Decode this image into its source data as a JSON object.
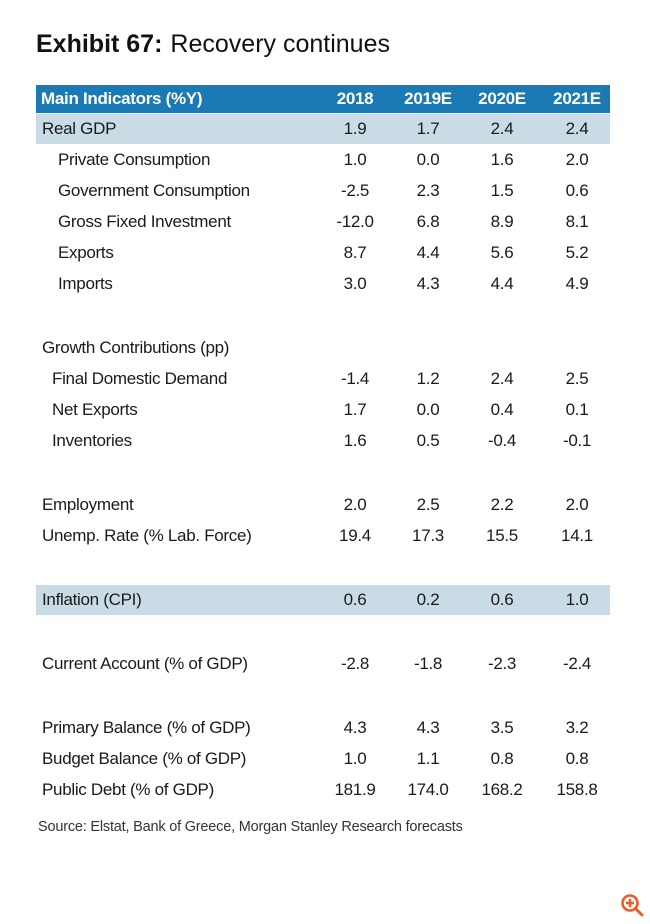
{
  "title": {
    "exhibit": "Exhibit 67:",
    "text": "Recovery continues"
  },
  "table": {
    "header": {
      "label": "Main Indicators (%Y)",
      "years": [
        "2018",
        "2019E",
        "2020E",
        "2021E"
      ]
    },
    "rows": [
      {
        "label": "Real GDP",
        "values": [
          "1.9",
          "1.7",
          "2.4",
          "2.4"
        ],
        "indent": 0,
        "band": true
      },
      {
        "label": "Private Consumption",
        "values": [
          "1.0",
          "0.0",
          "1.6",
          "2.0"
        ],
        "indent": 2
      },
      {
        "label": "Government Consumption",
        "values": [
          "-2.5",
          "2.3",
          "1.5",
          "0.6"
        ],
        "indent": 2
      },
      {
        "label": "Gross Fixed Investment",
        "values": [
          "-12.0",
          "6.8",
          "8.9",
          "8.1"
        ],
        "indent": 2
      },
      {
        "label": "Exports",
        "values": [
          "8.7",
          "4.4",
          "5.6",
          "5.2"
        ],
        "indent": 2
      },
      {
        "label": "Imports",
        "values": [
          "3.0",
          "4.3",
          "4.4",
          "4.9"
        ],
        "indent": 2
      },
      {
        "spacer": true
      },
      {
        "label": "Growth Contributions (pp)",
        "values": [],
        "indent": 0
      },
      {
        "label": "Final Domestic Demand",
        "values": [
          "-1.4",
          "1.2",
          "2.4",
          "2.5"
        ],
        "indent": 1
      },
      {
        "label": "Net Exports",
        "values": [
          "1.7",
          "0.0",
          "0.4",
          "0.1"
        ],
        "indent": 1
      },
      {
        "label": "Inventories",
        "values": [
          "1.6",
          "0.5",
          "-0.4",
          "-0.1"
        ],
        "indent": 1
      },
      {
        "spacer": true
      },
      {
        "label": "Employment",
        "values": [
          "2.0",
          "2.5",
          "2.2",
          "2.0"
        ],
        "indent": 0
      },
      {
        "label": "Unemp. Rate (% Lab. Force)",
        "values": [
          "19.4",
          "17.3",
          "15.5",
          "14.1"
        ],
        "indent": 0
      },
      {
        "spacer": true
      },
      {
        "label": "Inflation (CPI)",
        "values": [
          "0.6",
          "0.2",
          "0.6",
          "1.0"
        ],
        "indent": 0,
        "band": true
      },
      {
        "spacer": true
      },
      {
        "label": "Current Account (% of GDP)",
        "values": [
          "-2.8",
          "-1.8",
          "-2.3",
          "-2.4"
        ],
        "indent": 0
      },
      {
        "spacer": true
      },
      {
        "label": "Primary Balance (% of GDP)",
        "values": [
          "4.3",
          "4.3",
          "3.5",
          "3.2"
        ],
        "indent": 0
      },
      {
        "label": "Budget Balance (% of GDP)",
        "values": [
          "1.0",
          "1.1",
          "0.8",
          "0.8"
        ],
        "indent": 0
      },
      {
        "label": "Public Debt (% of GDP)",
        "values": [
          "181.9",
          "174.0",
          "168.2",
          "158.8"
        ],
        "indent": 0
      }
    ]
  },
  "source": "Source: Elstat, Bank of Greece, Morgan Stanley Research forecasts",
  "colors": {
    "header_bg": "#1b79b3",
    "band_bg": "#c9dbe5",
    "zoom_icon": "#f05a28"
  },
  "icons": {
    "zoom": "zoom-in-icon"
  }
}
